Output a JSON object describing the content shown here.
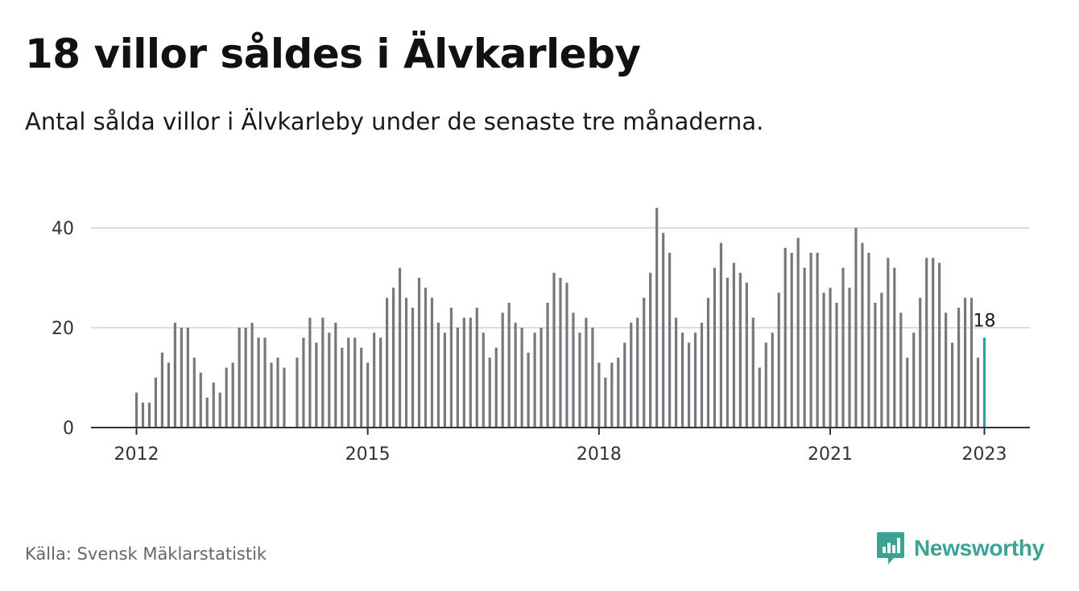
{
  "header": {
    "title": "18 villor såldes i Älvkarleby",
    "subtitle": "Antal sålda villor i Älvkarleby under de senaste tre månaderna."
  },
  "footer": {
    "source": "Källa: Svensk Mäklarstatistik",
    "brand": "Newsworthy",
    "brand_icon": "newsworthy-logo-icon"
  },
  "colors": {
    "bar": "#77777c",
    "highlight": "#26a69a",
    "grid": "#dddddd",
    "axis": "#333333",
    "brand": "#3aa394"
  },
  "chart_data": {
    "type": "bar",
    "title": "",
    "xlabel": "",
    "ylabel": "",
    "ylim": [
      0,
      45
    ],
    "yticks": [
      "0",
      "20",
      "40"
    ],
    "xticks": [
      "2012",
      "2015",
      "2018",
      "2021",
      "2023"
    ],
    "grid": true,
    "x_start": "2012-01",
    "x_end": "2023-01",
    "highlight_label": "18",
    "series": [
      {
        "values": [
          7,
          5,
          5,
          10,
          15,
          13,
          21,
          20,
          20,
          14,
          11,
          6,
          9,
          7,
          12,
          13,
          20,
          20,
          21,
          18,
          18,
          13,
          14,
          12,
          null,
          14,
          18,
          22,
          17,
          22,
          19,
          21,
          16,
          18,
          18,
          16,
          13,
          19,
          18,
          26,
          28,
          32,
          26,
          24,
          30,
          28,
          26,
          21,
          19,
          24,
          20,
          22,
          22,
          24,
          19,
          14,
          16,
          23,
          25,
          21,
          20,
          15,
          19,
          20,
          25,
          31,
          30,
          29,
          23,
          19,
          22,
          20,
          13,
          10,
          13,
          14,
          17,
          21,
          22,
          26,
          31,
          44,
          39,
          35,
          22,
          19,
          17,
          19,
          21,
          26,
          32,
          37,
          30,
          33,
          31,
          29,
          22,
          12,
          17,
          19,
          27,
          36,
          35,
          38,
          32,
          35,
          35,
          27,
          28,
          25,
          32,
          28,
          40,
          37,
          35,
          25,
          27,
          34,
          32,
          23,
          14,
          19,
          26,
          34,
          34,
          33,
          23,
          17,
          24,
          26,
          26,
          14,
          18
        ]
      }
    ]
  }
}
